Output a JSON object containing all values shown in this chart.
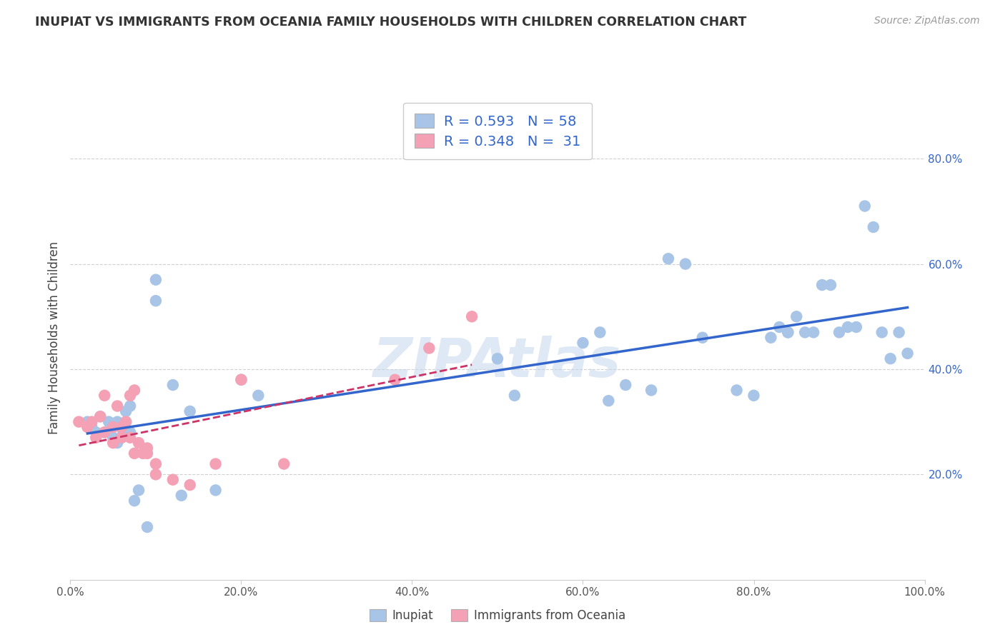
{
  "title": "INUPIAT VS IMMIGRANTS FROM OCEANIA FAMILY HOUSEHOLDS WITH CHILDREN CORRELATION CHART",
  "source": "Source: ZipAtlas.com",
  "ylabel": "Family Households with Children",
  "xlim": [
    0.0,
    1.0
  ],
  "ylim": [
    0.0,
    0.92
  ],
  "watermark": "ZIPAtlas",
  "inupiat_R": 0.593,
  "inupiat_N": 58,
  "oceania_R": 0.348,
  "oceania_N": 31,
  "inupiat_color": "#a8c4e6",
  "oceania_color": "#f4a0b5",
  "inupiat_line_color": "#3366cc",
  "oceania_line_color": "#cc3366",
  "background_color": "#ffffff",
  "grid_color": "#d0d0d0",
  "inupiat_x": [
    0.02,
    0.025,
    0.03,
    0.035,
    0.04,
    0.045,
    0.05,
    0.05,
    0.055,
    0.055,
    0.06,
    0.06,
    0.062,
    0.065,
    0.065,
    0.07,
    0.07,
    0.075,
    0.08,
    0.09,
    0.1,
    0.1,
    0.12,
    0.13,
    0.14,
    0.17,
    0.2,
    0.22,
    0.5,
    0.52,
    0.6,
    0.62,
    0.63,
    0.65,
    0.68,
    0.7,
    0.72,
    0.74,
    0.78,
    0.8,
    0.82,
    0.83,
    0.84,
    0.84,
    0.85,
    0.86,
    0.87,
    0.88,
    0.89,
    0.9,
    0.91,
    0.92,
    0.93,
    0.94,
    0.95,
    0.96,
    0.97,
    0.98
  ],
  "inupiat_y": [
    0.3,
    0.29,
    0.28,
    0.31,
    0.28,
    0.3,
    0.27,
    0.29,
    0.26,
    0.3,
    0.27,
    0.29,
    0.28,
    0.3,
    0.32,
    0.28,
    0.33,
    0.15,
    0.17,
    0.1,
    0.53,
    0.57,
    0.37,
    0.16,
    0.32,
    0.17,
    0.38,
    0.35,
    0.42,
    0.35,
    0.45,
    0.47,
    0.34,
    0.37,
    0.36,
    0.61,
    0.6,
    0.46,
    0.36,
    0.35,
    0.46,
    0.48,
    0.47,
    0.47,
    0.5,
    0.47,
    0.47,
    0.56,
    0.56,
    0.47,
    0.48,
    0.48,
    0.71,
    0.67,
    0.47,
    0.42,
    0.47,
    0.43
  ],
  "oceania_x": [
    0.01,
    0.02,
    0.025,
    0.03,
    0.035,
    0.04,
    0.04,
    0.05,
    0.05,
    0.055,
    0.06,
    0.06,
    0.065,
    0.07,
    0.07,
    0.075,
    0.075,
    0.08,
    0.085,
    0.09,
    0.09,
    0.1,
    0.1,
    0.12,
    0.14,
    0.17,
    0.2,
    0.25,
    0.38,
    0.42,
    0.47
  ],
  "oceania_y": [
    0.3,
    0.29,
    0.3,
    0.27,
    0.31,
    0.28,
    0.35,
    0.26,
    0.29,
    0.33,
    0.27,
    0.29,
    0.3,
    0.27,
    0.35,
    0.24,
    0.36,
    0.26,
    0.24,
    0.24,
    0.25,
    0.22,
    0.2,
    0.19,
    0.18,
    0.22,
    0.38,
    0.22,
    0.38,
    0.44,
    0.5
  ]
}
